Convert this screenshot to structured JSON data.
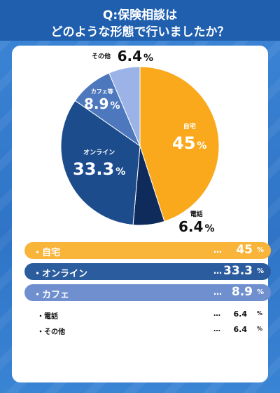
{
  "header": {
    "line1": "Q:保険相談は",
    "line2": "どのような形態で行いましたか？"
  },
  "chart_data": {
    "type": "pie",
    "start": "top, clockwise",
    "slices": [
      {
        "label": "自宅",
        "value": 45,
        "display": "45",
        "color": "#f9a91b"
      },
      {
        "label": "電話",
        "value": 6.4,
        "display": "6.4",
        "color": "#0f2b5c"
      },
      {
        "label": "オンライン",
        "value": 33.3,
        "display": "33.3",
        "color": "#1d4c8d"
      },
      {
        "label": "カフェ等",
        "value": 8.9,
        "display": "8.9",
        "color": "#4e78bd"
      },
      {
        "label": "その他",
        "value": 6.4,
        "display": "6.4",
        "color": "#9bb3e6"
      }
    ],
    "unit": "%"
  },
  "legend": {
    "bars": [
      {
        "label": "・自宅",
        "value": "45",
        "unit": "%",
        "color": "#f9b43a"
      },
      {
        "label": "・オンライン",
        "value": "33.3",
        "unit": "%",
        "color": "#2b5c9e"
      },
      {
        "label": "・カフェ",
        "value": "8.9",
        "unit": "%",
        "color": "#6f8fcf"
      }
    ],
    "rows": [
      {
        "label": "・電話",
        "value": "6.4",
        "unit": "%"
      },
      {
        "label": "・その他",
        "value": "6.4",
        "unit": "%"
      }
    ],
    "dots": "…"
  }
}
